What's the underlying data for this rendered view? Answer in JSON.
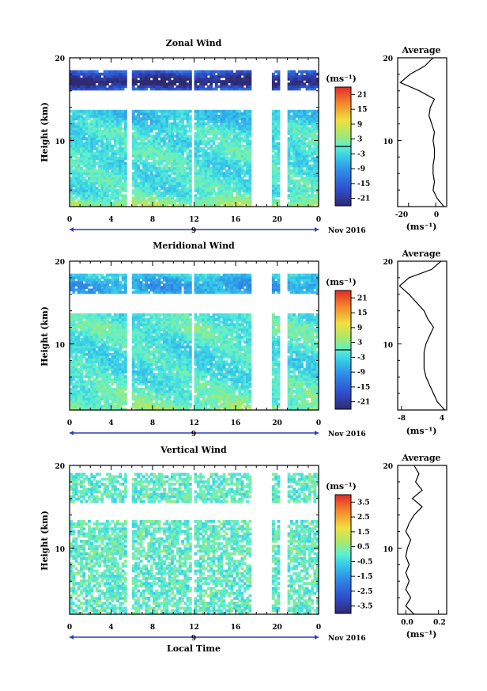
{
  "chart_data": [
    {
      "type": "heatmap",
      "title": "Zonal Wind",
      "ylabel": "Height (km)",
      "xlabel": "",
      "ylim": [
        2,
        20
      ],
      "xlim": [
        0,
        24
      ],
      "x_ticks": [
        "0",
        "4",
        "8",
        "12",
        "16",
        "20",
        "0"
      ],
      "y_ticks": [
        "10",
        "20"
      ],
      "date_label": "Nov 2016",
      "day_label": "9",
      "colorbar": {
        "unit": "(ms⁻¹)",
        "ticks": [
          "21",
          "15",
          "9",
          "3",
          "-3",
          "-9",
          "-15",
          "-21"
        ],
        "range": [
          -24,
          24
        ]
      },
      "valid_height_range": [
        2,
        18.5
      ],
      "data_gaps_local_time": [
        [
          18,
          19.5
        ],
        [
          20.2,
          21.0
        ]
      ],
      "profile": {
        "title": "Average",
        "xlabel": "(ms⁻¹)",
        "x_ticks": [
          "-20",
          "0"
        ],
        "xlim": [
          -28,
          8
        ],
        "y_ticks": [
          "10",
          "20"
        ],
        "heights": [
          2,
          3,
          4,
          5,
          6,
          7,
          8,
          9,
          10,
          11,
          12,
          13,
          14,
          15,
          16,
          17,
          18,
          19,
          20
        ],
        "values": [
          6,
          1,
          -2,
          -1,
          -2,
          -2,
          -1,
          -1,
          -2,
          -1,
          -3,
          -5,
          -4,
          -1,
          -12,
          -26,
          -19,
          -8,
          -2
        ]
      }
    },
    {
      "type": "heatmap",
      "title": "Meridional Wind",
      "ylabel": "Height (km)",
      "xlabel": "",
      "ylim": [
        2,
        20
      ],
      "xlim": [
        0,
        24
      ],
      "x_ticks": [
        "0",
        "4",
        "8",
        "12",
        "16",
        "20",
        "0"
      ],
      "y_ticks": [
        "10",
        "20"
      ],
      "date_label": "Nov 2016",
      "day_label": "9",
      "colorbar": {
        "unit": "(ms⁻¹)",
        "ticks": [
          "21",
          "15",
          "9",
          "3",
          "-3",
          "-9",
          "-15",
          "-21"
        ],
        "range": [
          -24,
          24
        ]
      },
      "valid_height_range": [
        2,
        18.5
      ],
      "data_gaps_local_time": [
        [
          18,
          19.5
        ],
        [
          20.2,
          21.0
        ]
      ],
      "profile": {
        "title": "Average",
        "xlabel": "(ms⁻¹)",
        "x_ticks": [
          "-8",
          "4"
        ],
        "xlim": [
          -9,
          4
        ],
        "y_ticks": [
          "10",
          "20"
        ],
        "heights": [
          2,
          3,
          4,
          5,
          6,
          7,
          8,
          9,
          10,
          11,
          12,
          13,
          14,
          15,
          16,
          17,
          18,
          19,
          20
        ],
        "values": [
          3.5,
          1.5,
          0.5,
          -0.5,
          -1.5,
          -2,
          -2,
          -2,
          -1.5,
          -0.5,
          0.5,
          -1,
          -2,
          -4,
          -6,
          -8.5,
          -6,
          0,
          2.5
        ]
      }
    },
    {
      "type": "heatmap",
      "title": "Vertical Wind",
      "ylabel": "Height (km)",
      "xlabel": "Local Time",
      "ylim": [
        2,
        20
      ],
      "xlim": [
        0,
        24
      ],
      "x_ticks": [
        "0",
        "4",
        "8",
        "12",
        "16",
        "20",
        "0"
      ],
      "y_ticks": [
        "10",
        "20"
      ],
      "date_label": "Nov 2016",
      "day_label": "9",
      "colorbar": {
        "unit": "(ms⁻¹)",
        "ticks": [
          "3.5",
          "2.5",
          "1.5",
          "0.5",
          "-0.5",
          "-1.5",
          "-2.5",
          "-3.5"
        ],
        "range": [
          -4,
          4
        ]
      },
      "valid_height_range": [
        2,
        19
      ],
      "data_gaps_local_time": [
        [
          18,
          19.5
        ],
        [
          20.2,
          21.0
        ]
      ],
      "profile": {
        "title": "Average",
        "xlabel": "(ms⁻¹)",
        "x_ticks": [
          "0.0",
          "0.2"
        ],
        "xlim": [
          -0.05,
          0.25
        ],
        "y_ticks": [
          "10",
          "20"
        ],
        "heights": [
          2,
          3,
          4,
          5,
          6,
          7,
          8,
          9,
          10,
          11,
          12,
          13,
          14,
          15,
          16,
          17,
          18,
          19,
          20
        ],
        "values": [
          0.05,
          0.0,
          0.03,
          0.0,
          0.02,
          0.0,
          0.02,
          0.0,
          0.01,
          0.03,
          0.0,
          0.02,
          0.05,
          0.1,
          0.04,
          0.1,
          0.06,
          0.08,
          0.05
        ]
      }
    }
  ]
}
